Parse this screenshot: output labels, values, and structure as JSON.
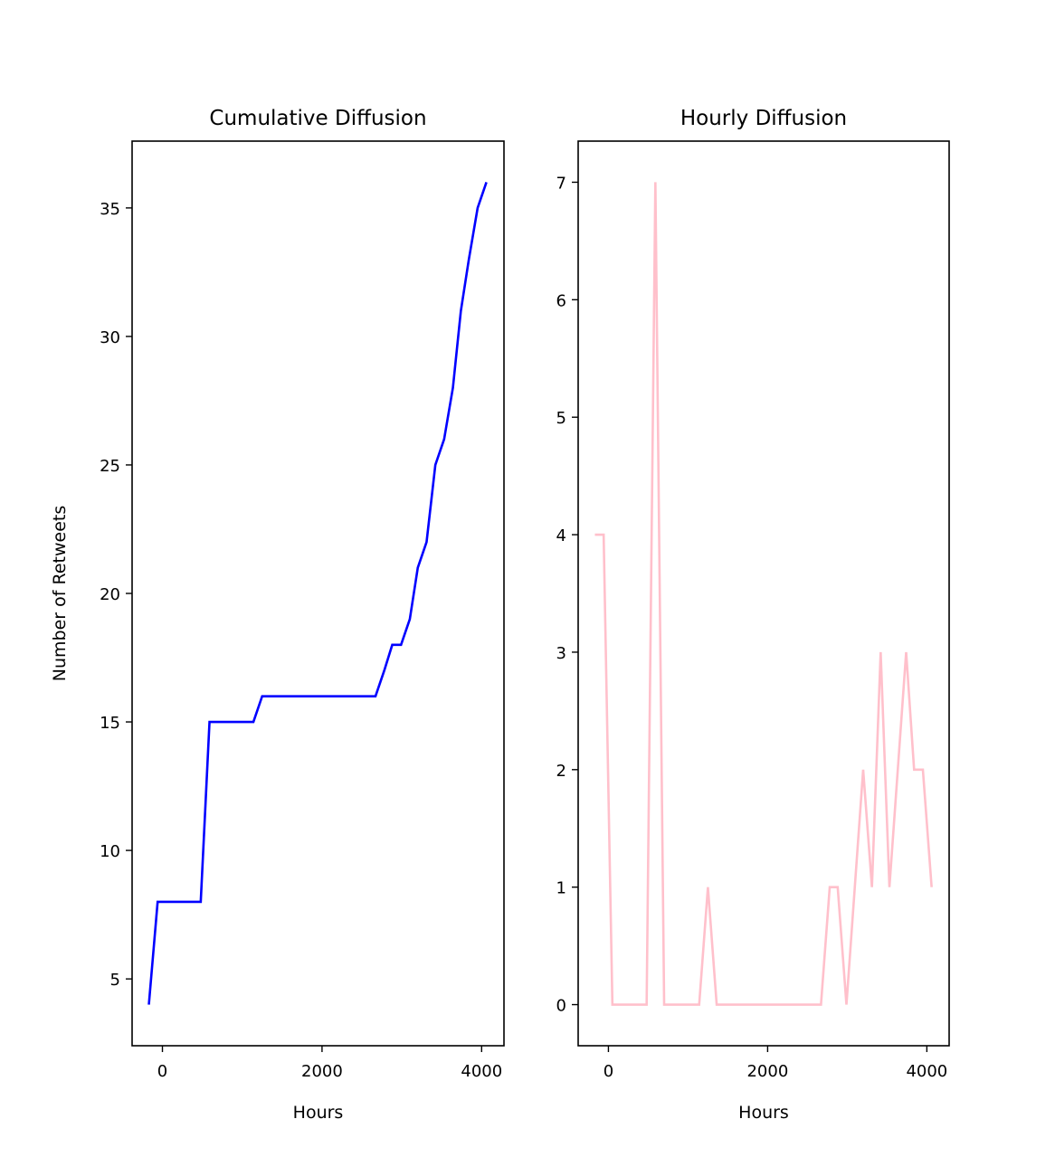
{
  "chart_data": [
    {
      "type": "line",
      "title": "Cumulative Diffusion",
      "xlabel": "Hours",
      "ylabel": "Number of Retweets",
      "xlim": [
        -380,
        4280
      ],
      "ylim": [
        2.4,
        37.6
      ],
      "xticks": [
        0,
        2000,
        4000
      ],
      "xtick_labels": [
        "0",
        "2000",
        "4000"
      ],
      "yticks": [
        5,
        10,
        15,
        20,
        25,
        30,
        35
      ],
      "ytick_labels": [
        "5",
        "10",
        "15",
        "20",
        "25",
        "30",
        "35"
      ],
      "grid": false,
      "series": [
        {
          "color": "#0000ff",
          "x": [
            -170,
            -60,
            480,
            590,
            1140,
            1250,
            2670,
            2780,
            2880,
            2990,
            3100,
            3200,
            3310,
            3420,
            3530,
            3640,
            3740,
            3840,
            3950,
            4060
          ],
          "y": [
            4,
            8,
            8,
            15,
            15,
            16,
            16,
            17,
            18,
            18,
            19,
            21,
            22,
            25,
            26,
            28,
            31,
            33,
            35,
            36
          ]
        }
      ]
    },
    {
      "type": "line",
      "title": "Hourly Diffusion",
      "xlabel": "Hours",
      "ylabel": "",
      "xlim": [
        -380,
        4280
      ],
      "ylim": [
        -0.35,
        7.35
      ],
      "xticks": [
        0,
        2000,
        4000
      ],
      "xtick_labels": [
        "0",
        "2000",
        "4000"
      ],
      "yticks": [
        0,
        1,
        2,
        3,
        4,
        5,
        6,
        7
      ],
      "ytick_labels": [
        "0",
        "1",
        "2",
        "3",
        "4",
        "5",
        "6",
        "7"
      ],
      "grid": false,
      "series": [
        {
          "color": "#ffc0cb",
          "x": [
            -170,
            -60,
            50,
            480,
            590,
            700,
            1140,
            1250,
            1360,
            2670,
            2780,
            2880,
            2990,
            3200,
            3310,
            3420,
            3530,
            3740,
            3840,
            3950,
            4060
          ],
          "y": [
            4,
            4,
            0,
            0,
            7,
            0,
            0,
            1,
            0,
            0,
            1,
            1,
            0,
            2,
            1,
            3,
            1,
            3,
            2,
            2,
            1
          ]
        }
      ]
    }
  ]
}
